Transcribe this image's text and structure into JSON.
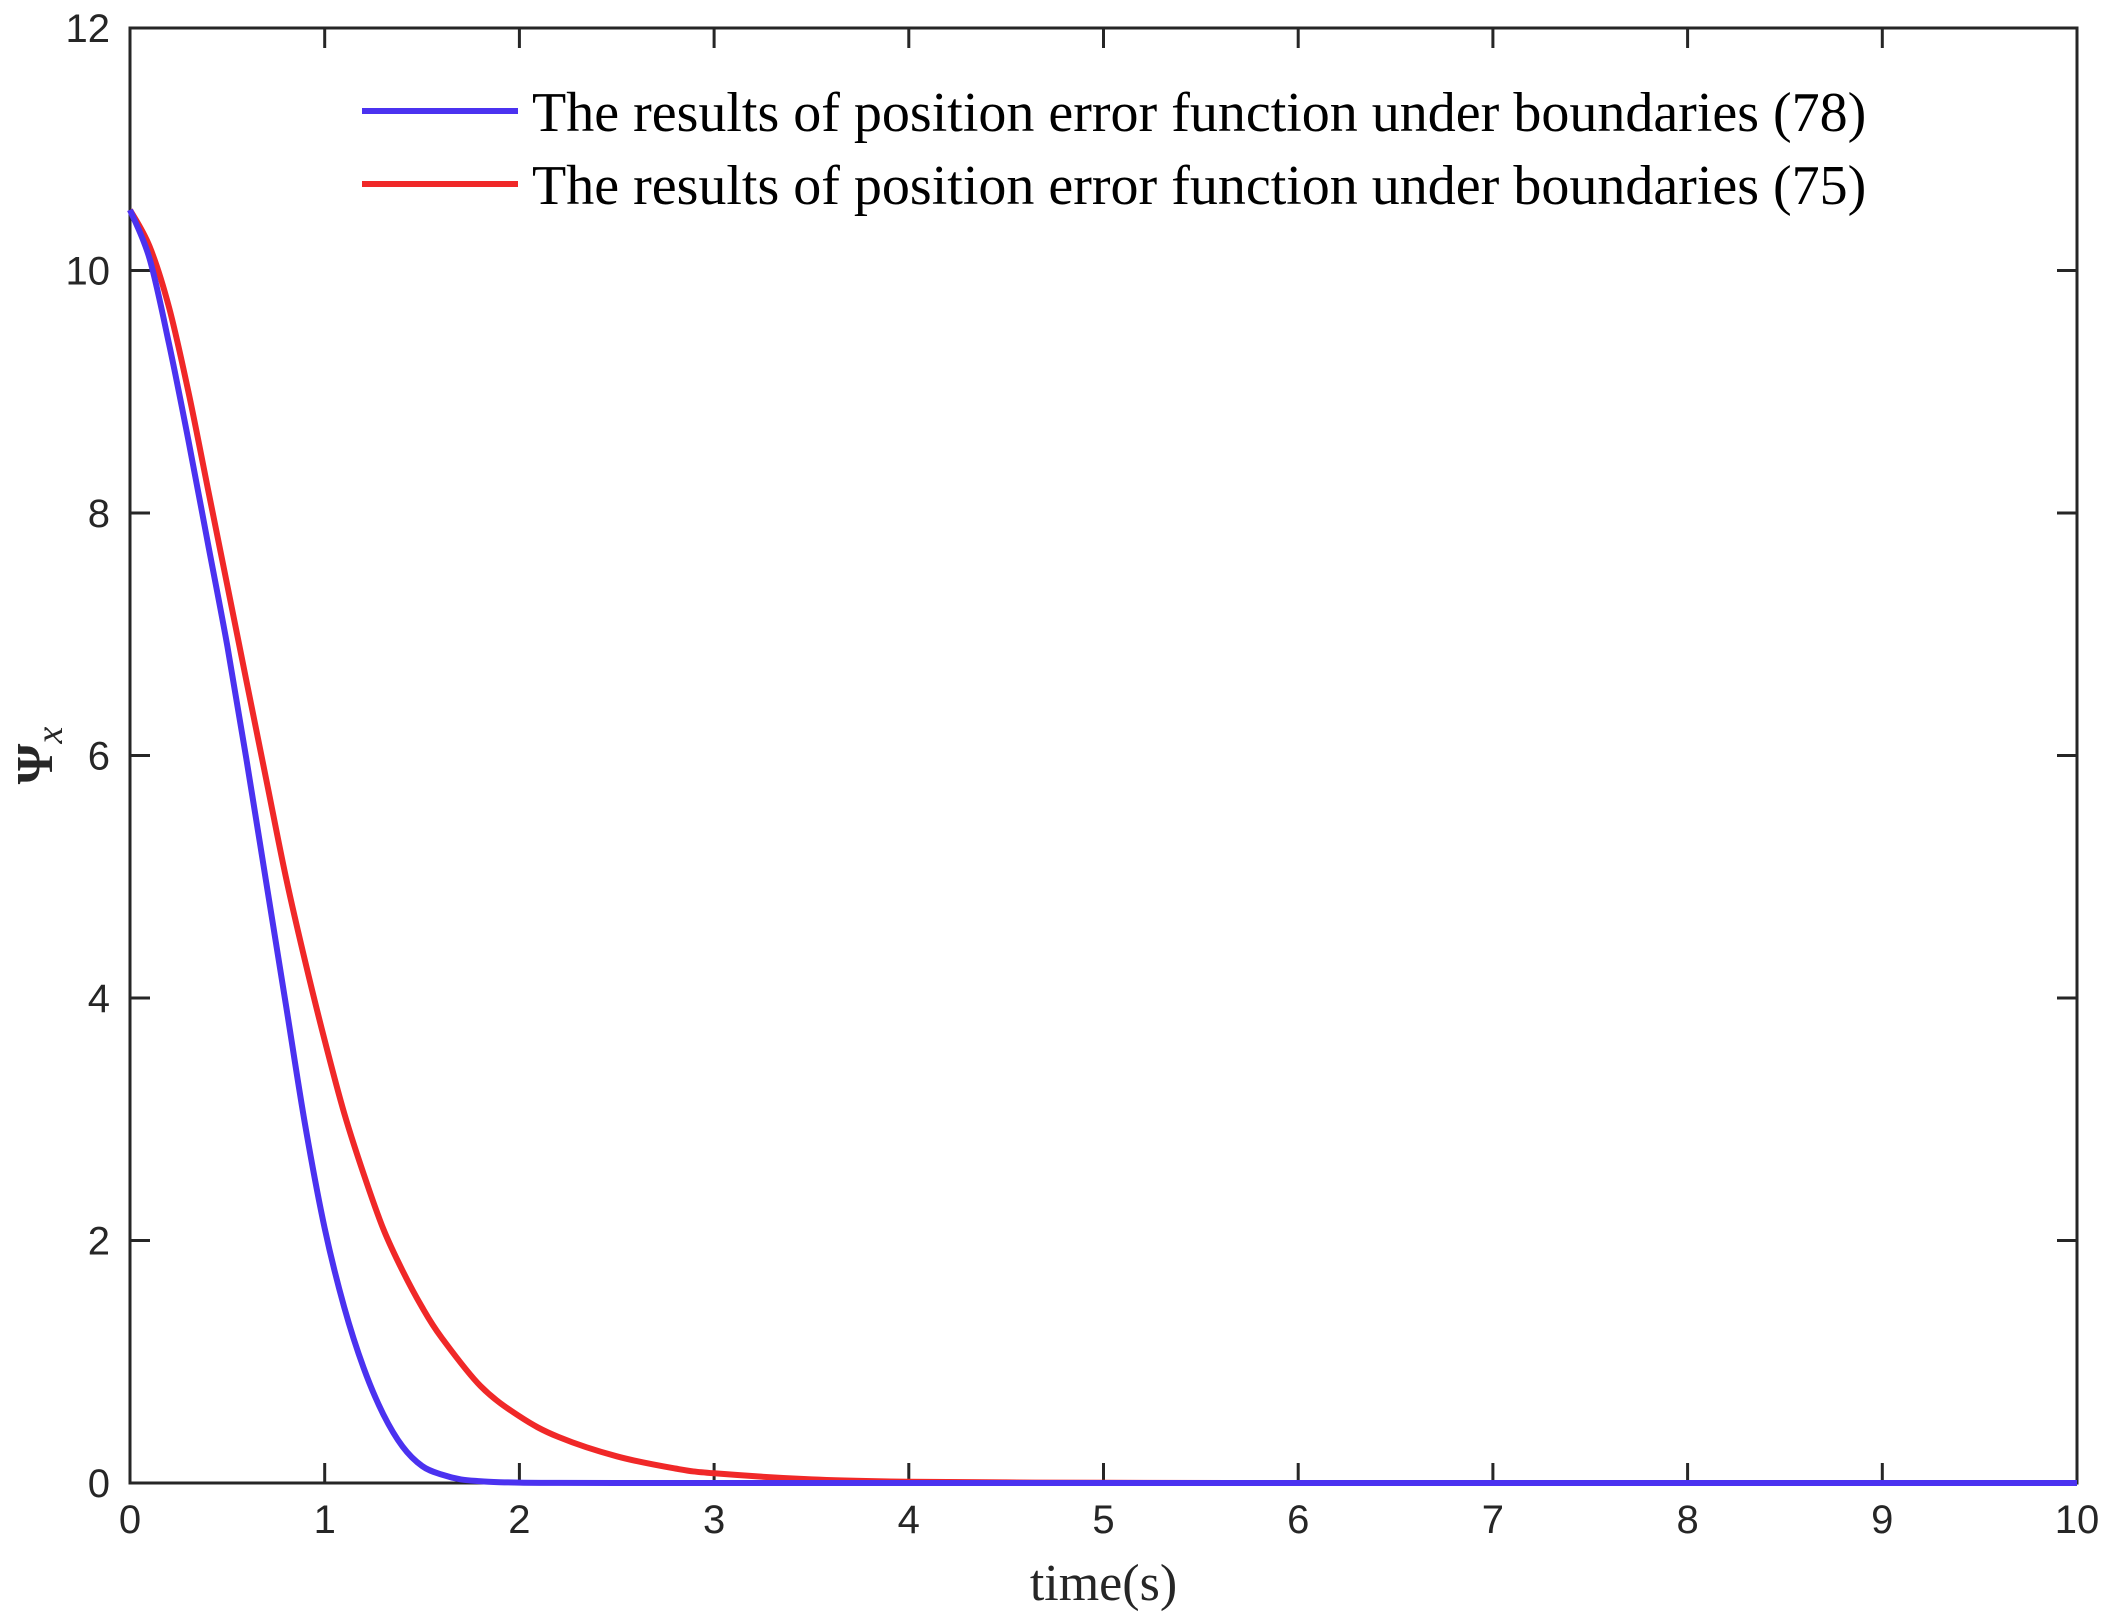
{
  "chart_data": {
    "type": "line",
    "title": "",
    "xlabel": "time(s)",
    "ylabel": "Ψx",
    "ylabel_main": "Ψ",
    "ylabel_sub": "x",
    "xlim": [
      0,
      10
    ],
    "ylim": [
      0,
      12
    ],
    "xticks": [
      "0",
      "1",
      "2",
      "3",
      "4",
      "5",
      "6",
      "7",
      "8",
      "9",
      "10"
    ],
    "yticks": [
      "0",
      "2",
      "4",
      "6",
      "8",
      "10",
      "12"
    ],
    "grid": false,
    "legend_position": "top-right",
    "series": [
      {
        "name": "The results of position error function under boundaries (78)",
        "color": "#4B32F0",
        "x": [
          0,
          0.1,
          0.2,
          0.3,
          0.4,
          0.5,
          0.6,
          0.7,
          0.8,
          0.9,
          1.0,
          1.1,
          1.2,
          1.3,
          1.4,
          1.5,
          1.6,
          1.7,
          1.8,
          1.9,
          2.0,
          2.2,
          2.5,
          3.0,
          4.0,
          5.0,
          6.0,
          7.0,
          8.0,
          9.0,
          10.0
        ],
        "values": [
          10.5,
          10.1,
          9.4,
          8.6,
          7.75,
          6.9,
          5.95,
          4.95,
          3.95,
          2.95,
          2.1,
          1.45,
          0.95,
          0.57,
          0.3,
          0.14,
          0.07,
          0.03,
          0.015,
          0.007,
          0.003,
          0.001,
          0.0,
          0.0,
          0.0,
          0.0,
          0.0,
          0.0,
          0.0,
          0.0,
          0.0
        ]
      },
      {
        "name": "The results of position error function under boundaries (75)",
        "color": "#F02828",
        "x": [
          0,
          0.1,
          0.2,
          0.3,
          0.4,
          0.5,
          0.6,
          0.7,
          0.8,
          0.9,
          1.0,
          1.1,
          1.2,
          1.3,
          1.4,
          1.5,
          1.6,
          1.8,
          2.0,
          2.2,
          2.5,
          2.8,
          3.0,
          3.5,
          4.0,
          4.5,
          5.0,
          6.0,
          7.0,
          8.0,
          9.0,
          10.0
        ],
        "values": [
          10.5,
          10.2,
          9.7,
          9.0,
          8.2,
          7.4,
          6.6,
          5.8,
          5.0,
          4.3,
          3.65,
          3.05,
          2.55,
          2.1,
          1.75,
          1.45,
          1.2,
          0.8,
          0.55,
          0.38,
          0.22,
          0.12,
          0.08,
          0.03,
          0.01,
          0.005,
          0.002,
          0.0,
          0.0,
          0.0,
          0.0,
          0.0
        ]
      }
    ]
  }
}
